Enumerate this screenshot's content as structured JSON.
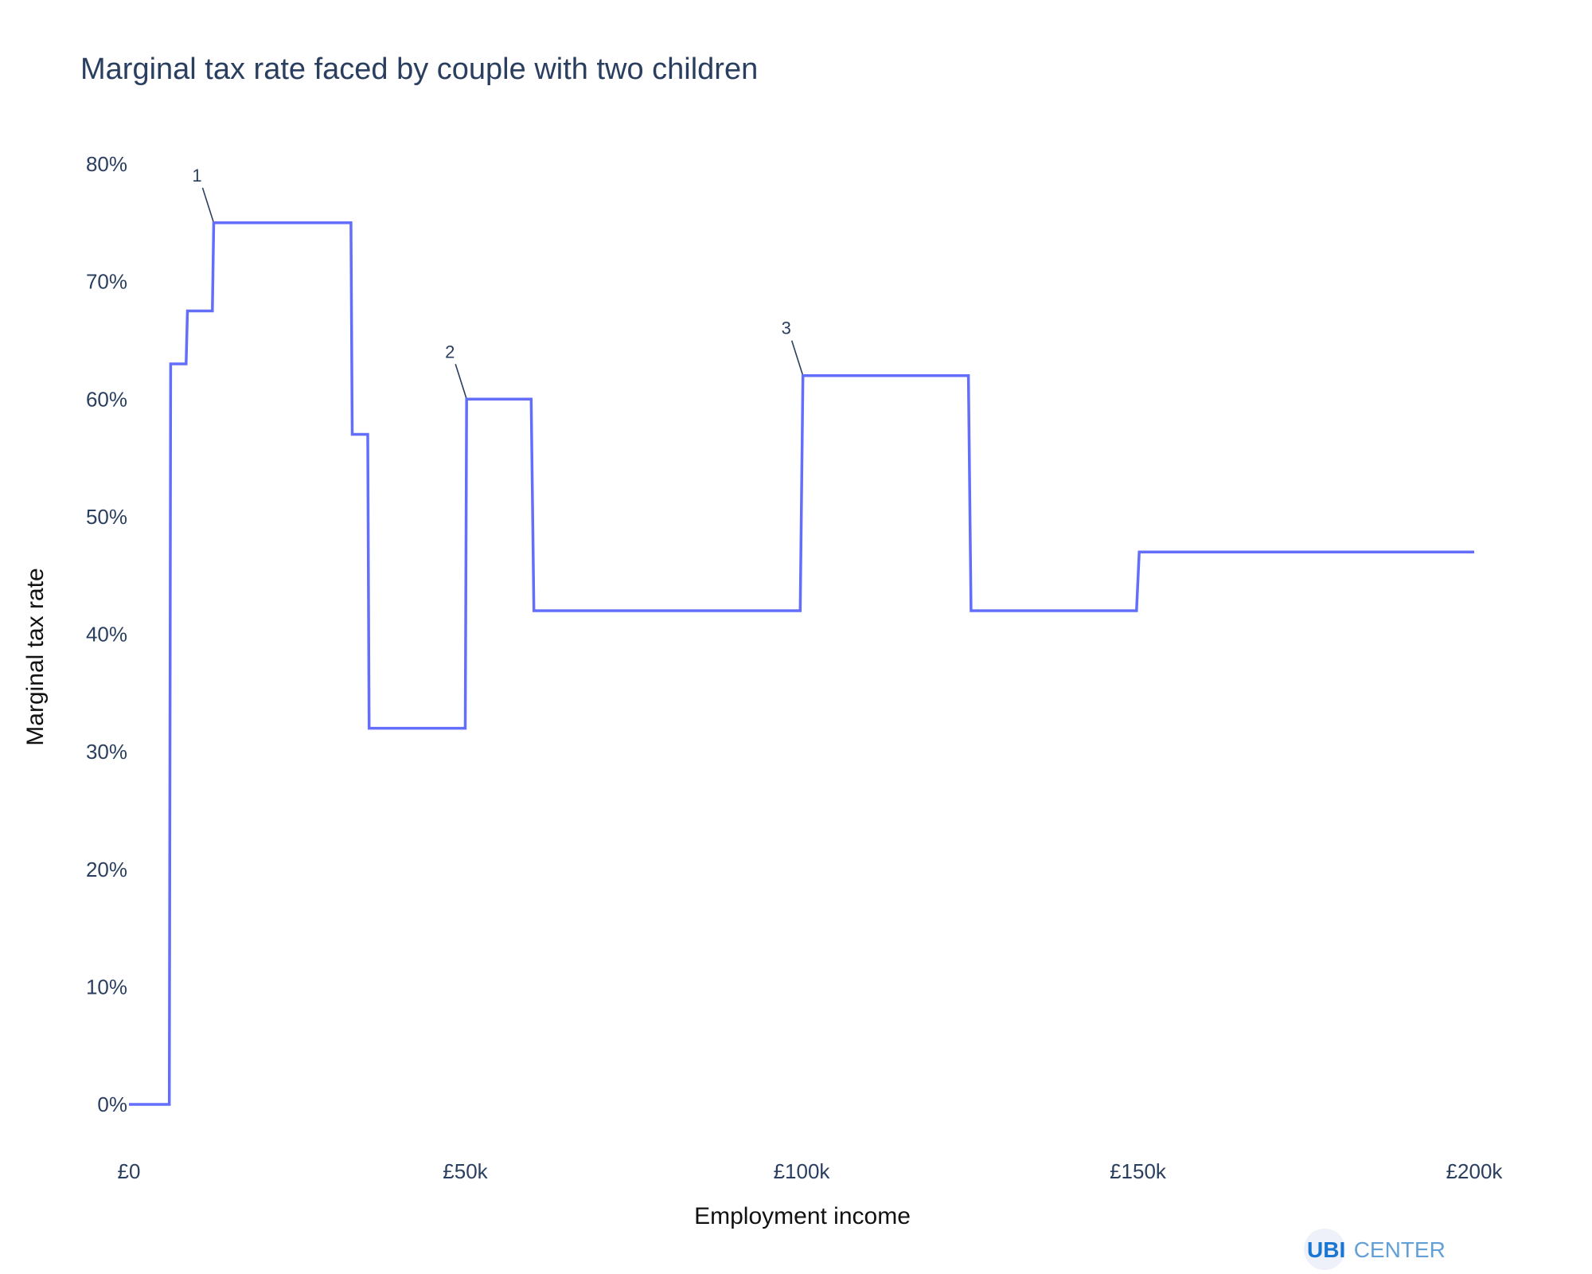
{
  "chart_data": {
    "type": "line",
    "line_shape": "step",
    "title": "Marginal tax rate faced by couple with two children",
    "xlabel": "Employment income",
    "ylabel": "Marginal tax rate",
    "xlim": [
      0,
      200000
    ],
    "ylim": [
      0,
      0.8
    ],
    "x_ticks": [
      0,
      50000,
      100000,
      150000,
      200000
    ],
    "x_tick_labels": [
      "£0",
      "£50k",
      "£100k",
      "£150k",
      "£200k"
    ],
    "y_ticks": [
      0,
      0.1,
      0.2,
      0.3,
      0.4,
      0.5,
      0.6,
      0.7,
      0.8
    ],
    "y_tick_labels": [
      "0%",
      "10%",
      "20%",
      "30%",
      "40%",
      "50%",
      "60%",
      "70%",
      "80%"
    ],
    "grid": false,
    "line_color": "#636efa",
    "series": [
      {
        "x": [
          0,
          6000,
          6200,
          8500,
          8700,
          12400,
          12600,
          33000,
          33200,
          35500,
          35700,
          50000,
          50200,
          59800,
          60200,
          99800,
          100200,
          124800,
          125200,
          149800,
          150200,
          200000
        ],
        "y": [
          0,
          0,
          0.63,
          0.63,
          0.675,
          0.675,
          0.75,
          0.75,
          0.57,
          0.57,
          0.32,
          0.32,
          0.6,
          0.6,
          0.42,
          0.42,
          0.62,
          0.62,
          0.42,
          0.42,
          0.47,
          0.47
        ]
      }
    ],
    "annotations": [
      {
        "text": "1",
        "x": 12600,
        "y": 0.75
      },
      {
        "text": "2",
        "x": 50200,
        "y": 0.6
      },
      {
        "text": "3",
        "x": 100200,
        "y": 0.62
      }
    ]
  },
  "logo": {
    "ubi": "UBI",
    "center": "CENTER",
    "ubi_color": "#1976d2",
    "center_color": "#64a0d8",
    "circle_color": "#eef0fa"
  }
}
